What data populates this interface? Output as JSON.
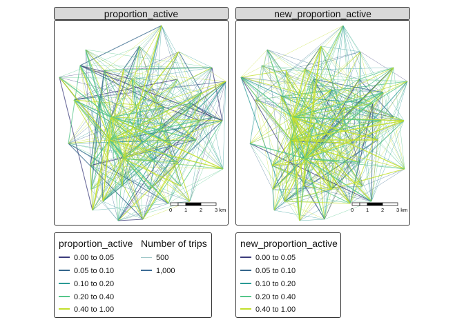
{
  "panels": [
    {
      "title": "proportion_active"
    },
    {
      "title": "new_proportion_active"
    }
  ],
  "scale_bar": {
    "ticks": [
      "0",
      "1",
      "2",
      "3 km"
    ]
  },
  "legend_left": {
    "color_title": "proportion_active",
    "size_title": "Number of trips",
    "color_items": [
      "0.00 to 0.05",
      "0.05 to 0.10",
      "0.10 to 0.20",
      "0.20 to 0.40",
      "0.40 to 1.00"
    ],
    "size_items": [
      "500",
      "1,000"
    ]
  },
  "legend_right": {
    "color_title": "new_proportion_active",
    "color_items": [
      "0.00 to 0.05",
      "0.05 to 0.10",
      "0.10 to 0.20",
      "0.20 to 0.40",
      "0.40 to 1.00"
    ]
  },
  "palette": [
    "#3b3b7a",
    "#33658a",
    "#2a9a95",
    "#55c68a",
    "#c2df2a"
  ],
  "size_colors": [
    "#9ec7c8",
    "#3c6b95"
  ]
}
